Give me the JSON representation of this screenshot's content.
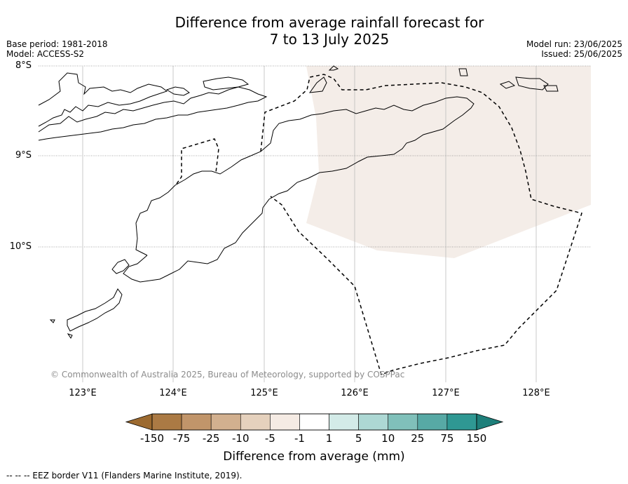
{
  "title_line1": "Difference from average rainfall forecast for",
  "title_line2": "7 to 13 July 2025",
  "base_period": "Base period: 1981-2018",
  "model": "Model: ACCESS-S2",
  "model_run": "Model run: 23/06/2025",
  "issued": "Issued: 25/06/2025",
  "lat_labels": [
    "8°S",
    "9°S",
    "10°S"
  ],
  "lon_labels": [
    "123°E",
    "124°E",
    "125°E",
    "126°E",
    "127°E",
    "128°E"
  ],
  "copyright": "© Commonwealth of Australia 2025, Bureau of Meteorology, supported by COSPPac",
  "colorbar": {
    "ticks": [
      "-150",
      "-75",
      "-25",
      "-10",
      "-5",
      "-1",
      "1",
      "5",
      "10",
      "25",
      "75",
      "150"
    ],
    "colors": [
      "#9c6a30",
      "#ab7a44",
      "#c1956a",
      "#d2b08f",
      "#e5d1bd",
      "#f5ebe4",
      "#ffffff",
      "#d3ebe8",
      "#add8d4",
      "#80c0ba",
      "#57a9a5",
      "#2f9893",
      "#1e7f7a"
    ],
    "label": "Difference from average (mm)"
  },
  "forecast_area_color": "#f4ede8",
  "footer": "--  --  -- EEZ border V11 (Flanders Marine Institute, 2019)."
}
